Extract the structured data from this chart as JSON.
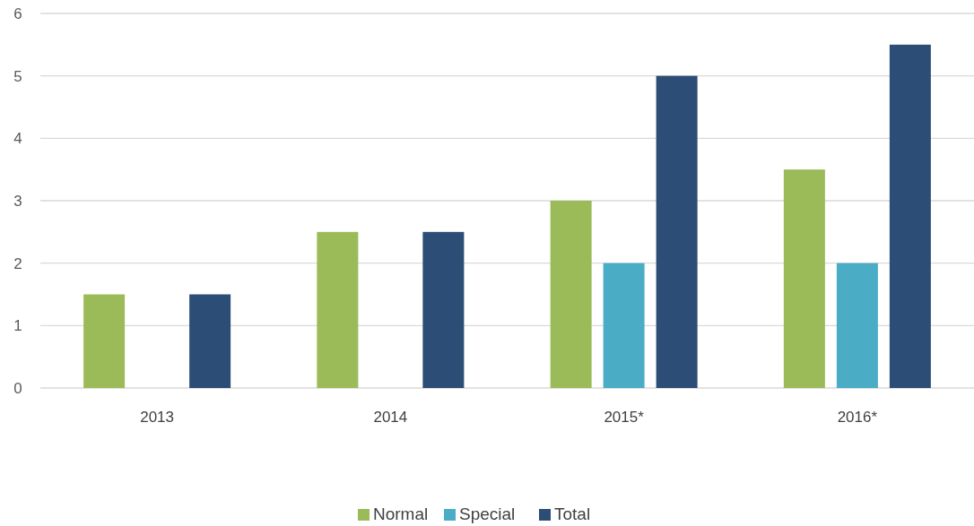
{
  "chart_data": {
    "type": "bar",
    "categories": [
      "2013",
      "2014",
      "2015*",
      "2016*"
    ],
    "series": [
      {
        "name": "Normal",
        "color": "#9bbb59",
        "values": [
          1.5,
          2.5,
          3,
          3.5
        ]
      },
      {
        "name": "Special",
        "color": "#4bacc6",
        "values": [
          null,
          null,
          2,
          2
        ]
      },
      {
        "name": "Total",
        "color": "#2c4d75",
        "values": [
          1.5,
          2.5,
          5,
          5.5
        ]
      }
    ],
    "ylim": [
      0,
      6
    ],
    "yticks": [
      0,
      1,
      2,
      3,
      4,
      5,
      6
    ],
    "grid": "y",
    "legend": "bottom"
  }
}
